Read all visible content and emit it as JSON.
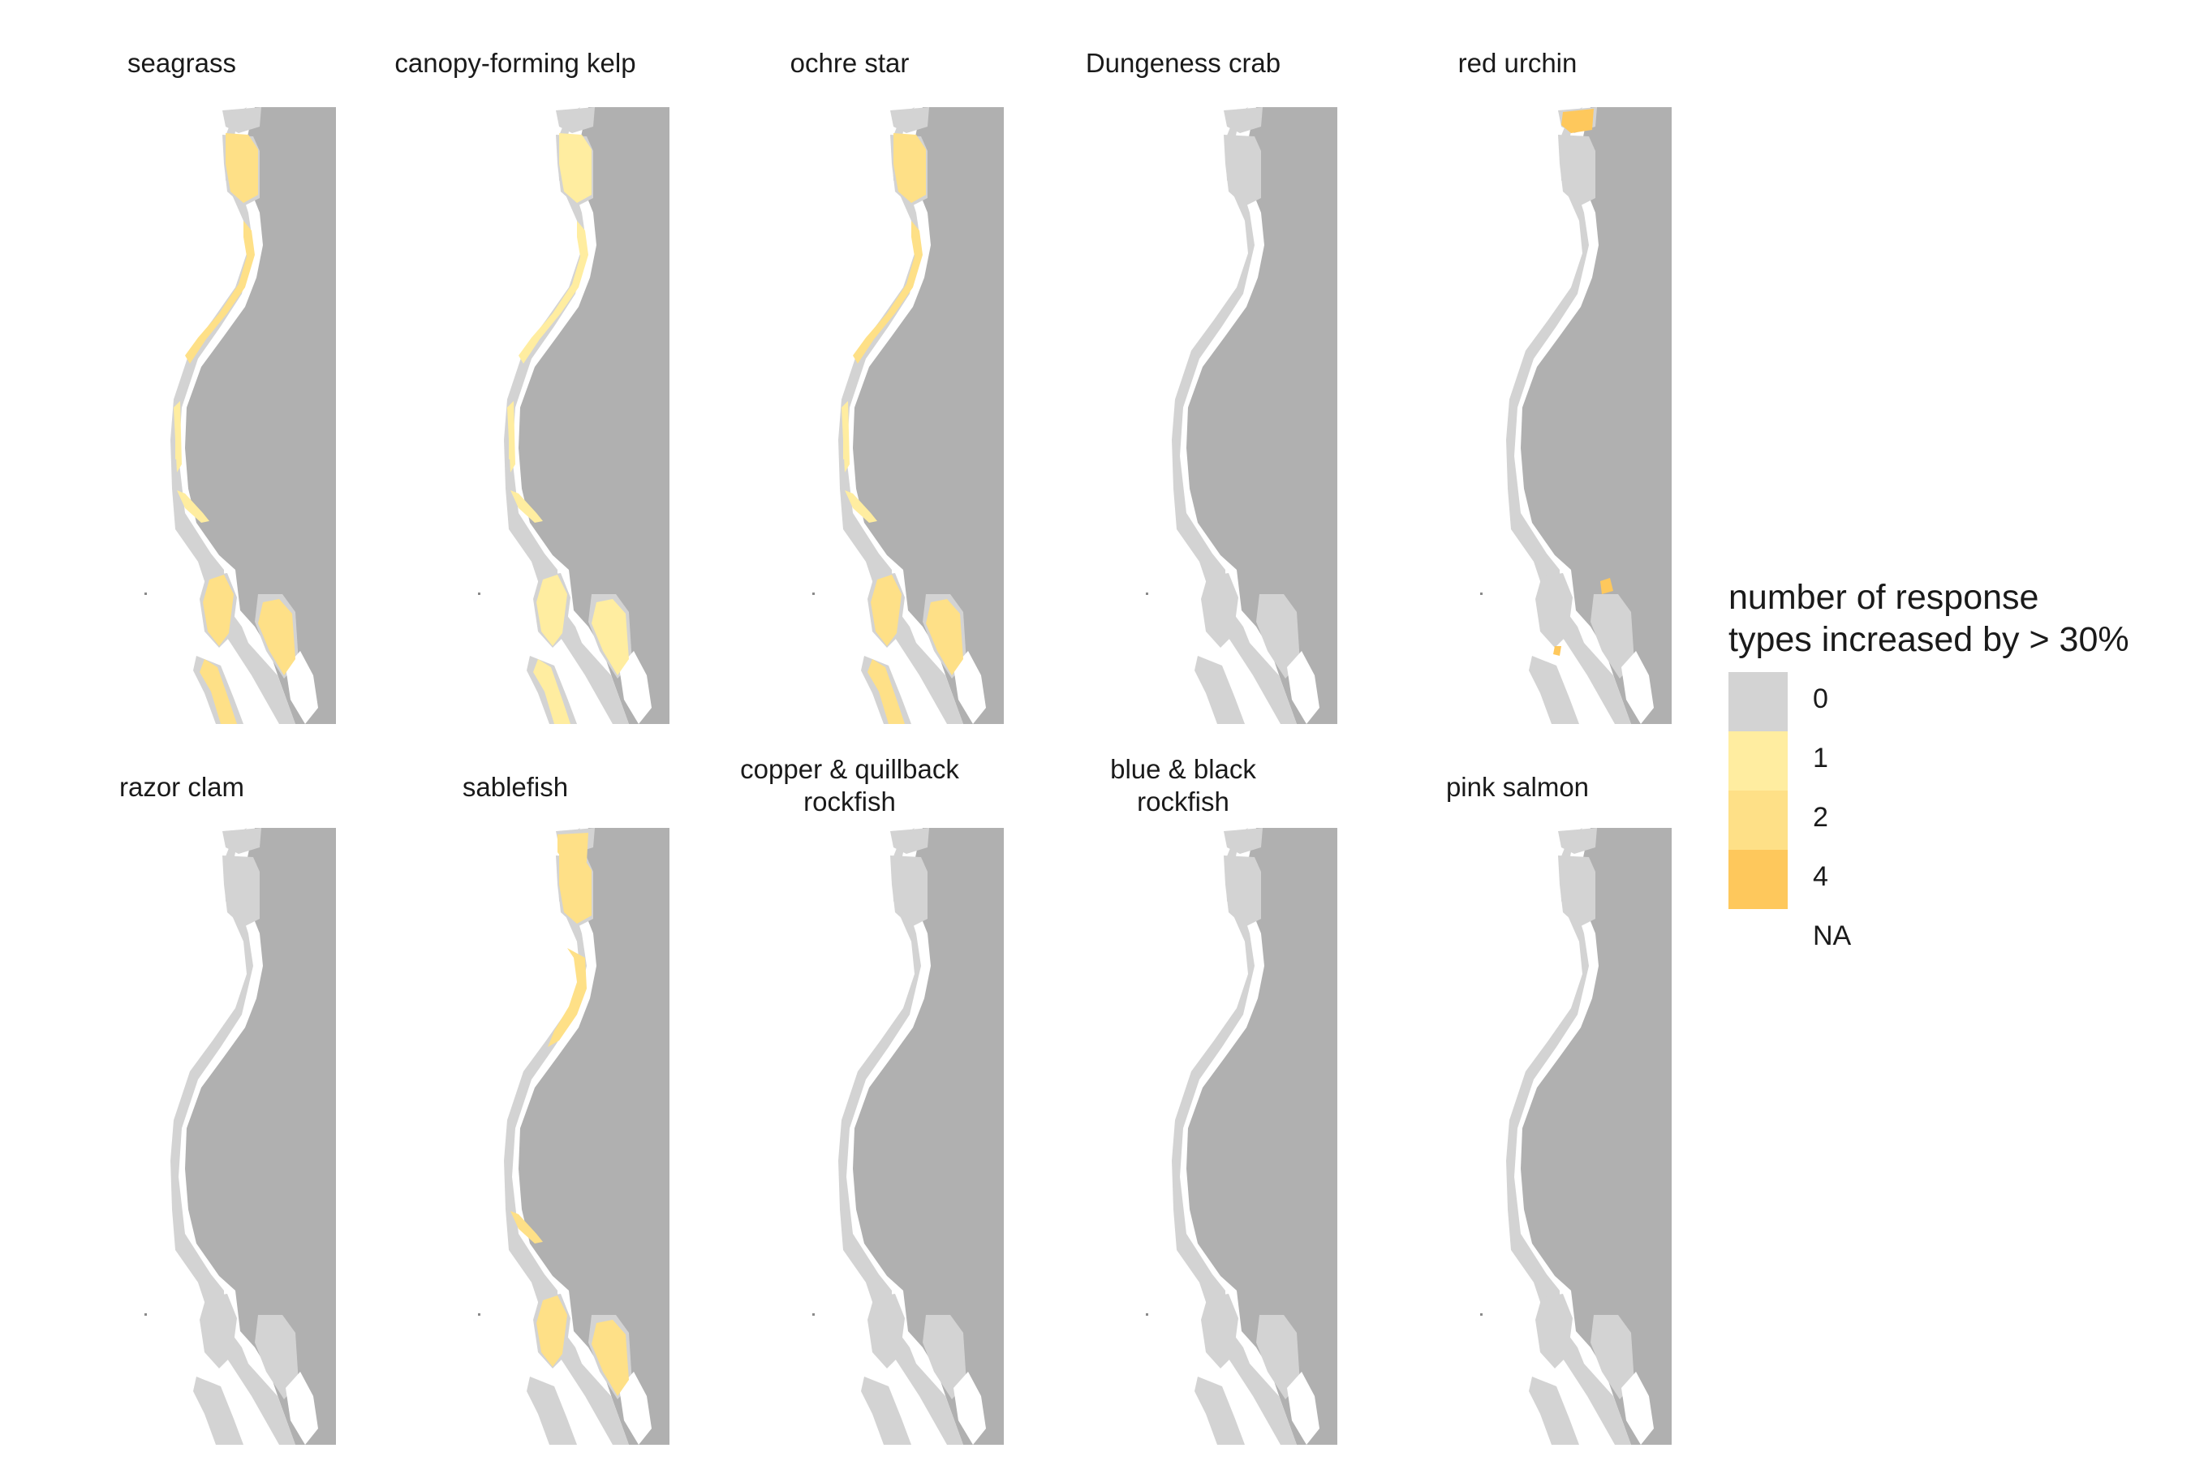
{
  "panels": [
    {
      "title": "seagrass",
      "region_levels": {
        "north_inlet": "2",
        "outer_coast": "2",
        "south_patch": "2",
        "south_inlet": "2",
        "east_sound": "2",
        "rows_a": "1",
        "rows_b": "1",
        "rows_c": "1"
      }
    },
    {
      "title": "canopy-forming kelp",
      "region_levels": {
        "north_inlet": "1",
        "outer_coast": "1",
        "south_patch": "1",
        "south_inlet": "1",
        "east_sound": "1",
        "rows_a": "1",
        "rows_b": "1",
        "rows_c": "1"
      }
    },
    {
      "title": "ochre star",
      "region_levels": {
        "north_inlet": "2",
        "outer_coast": "2",
        "south_patch": "2",
        "south_inlet": "2",
        "east_sound": "2",
        "rows_a": "1",
        "rows_b": "1",
        "rows_c": "1"
      }
    },
    {
      "title": "Dungeness crab",
      "region_levels": {}
    },
    {
      "title": "red urchin",
      "region_levels": {
        "north_tip": "4",
        "south_tip": "4",
        "south_point": "4"
      }
    },
    {
      "title": "razor clam",
      "region_levels": {}
    },
    {
      "title": "sablefish",
      "region_levels": {
        "north_inlet": "2",
        "north_upper": "2",
        "upper_coast": "2",
        "south_patch": "2",
        "south_inlet": "2",
        "rows_b": "2"
      }
    },
    {
      "title": "copper & quillback\nrockfish",
      "region_levels": {}
    },
    {
      "title": "blue & black\nrockfish",
      "region_levels": {}
    },
    {
      "title": "pink salmon",
      "region_levels": {}
    }
  ],
  "legend": {
    "title": "number of response\ntypes increased by > 30%",
    "items": [
      {
        "label": "0",
        "color": "#d3d3d3"
      },
      {
        "label": "1",
        "color": "#ffeda0"
      },
      {
        "label": "2",
        "color": "#fee087"
      },
      {
        "label": "4",
        "color": "#fec85c"
      },
      {
        "label": "NA",
        "color": "#ffffff"
      }
    ]
  },
  "colors": {
    "land": "#b0b0b0",
    "background": "#ffffff"
  }
}
